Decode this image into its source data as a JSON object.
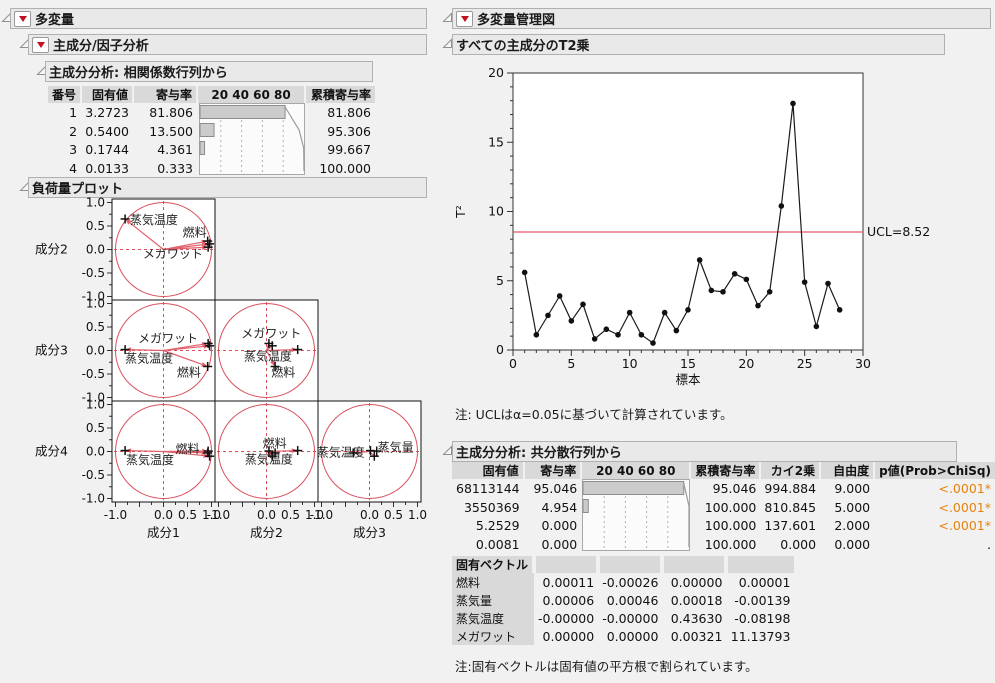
{
  "left": {
    "outline_multivariate": "多変量",
    "outline_principal": "主成分/因子分析",
    "pca_corr": {
      "title": "主成分分析: 相関係数行列から",
      "columns": [
        "番号",
        "固有値",
        "寄与率",
        "20 40 60 80",
        "累積寄与率"
      ],
      "rows": [
        {
          "num": "1",
          "eigenvalue": "3.2723",
          "percent": "81.806",
          "cum_percent": "81.806",
          "bar": 81.806,
          "cum": 81.806
        },
        {
          "num": "2",
          "eigenvalue": "0.5400",
          "percent": "13.500",
          "cum_percent": "95.306",
          "bar": 13.5,
          "cum": 95.306
        },
        {
          "num": "3",
          "eigenvalue": "0.1744",
          "percent": "4.361",
          "cum_percent": "99.667",
          "bar": 4.361,
          "cum": 99.667
        },
        {
          "num": "4",
          "eigenvalue": "0.0133",
          "percent": "0.333",
          "cum_percent": "100.000",
          "bar": 0.333,
          "cum": 100
        }
      ]
    },
    "loading_title": "負荷量プロット"
  },
  "right": {
    "outline_control": "多変量管理図",
    "t2_title": "すべての主成分のT2乗",
    "t2_note": "注: UCLはα=0.05に基づいて計算されています。",
    "pca_cov": {
      "title": "主成分分析: 共分散行列から",
      "columns": [
        "固有値",
        "寄与率",
        "20 40 60 80",
        "累積寄与率",
        "カイ2乗",
        "自由度",
        "p値(Prob>ChiSq)"
      ],
      "rows": [
        {
          "eigenvalue": "68113144",
          "percent": "95.046",
          "cum_percent": "95.046",
          "chisq": "994.884",
          "df": "9.000",
          "p": "<.0001*",
          "bar": 95.046,
          "cum": 95.046
        },
        {
          "eigenvalue": "3550369",
          "percent": "4.954",
          "cum_percent": "100.000",
          "chisq": "810.845",
          "df": "5.000",
          "p": "<.0001*",
          "bar": 4.954,
          "cum": 100
        },
        {
          "eigenvalue": "5.2529",
          "percent": "0.000",
          "cum_percent": "100.000",
          "chisq": "137.601",
          "df": "2.000",
          "p": "<.0001*",
          "bar": 0,
          "cum": 100
        },
        {
          "eigenvalue": "0.0081",
          "percent": "0.000",
          "cum_percent": "100.000",
          "chisq": "0.000",
          "df": "0.000",
          "p": ".",
          "bar": 0,
          "cum": 100
        }
      ]
    },
    "eigenvectors": {
      "title": "固有ベクトル",
      "rows": [
        {
          "name": "燃料",
          "values": [
            "0.00011",
            "-0.00026",
            "0.00000",
            "0.00001"
          ]
        },
        {
          "name": "蒸気量",
          "values": [
            "0.00006",
            "0.00046",
            "0.00018",
            "-0.00139"
          ]
        },
        {
          "name": "蒸気温度",
          "values": [
            "-0.00000",
            "-0.00000",
            "0.43630",
            "-0.08198"
          ]
        },
        {
          "name": "メガワット",
          "values": [
            "0.00000",
            "0.00000",
            "0.00321",
            "11.13793"
          ]
        }
      ]
    },
    "eigvec_note": "注:固有ベクトルは固有値の平方根で割られています。"
  },
  "colors": {
    "jmp_red": "#d94f5c",
    "arrow_red": "#e2606c",
    "ucl_red": "#e25765",
    "orange": "#e8820c",
    "bar_fill": "#cbcbcb"
  },
  "chart_data": [
    {
      "id": "t2_chart",
      "type": "line",
      "title": "すべての主成分のT2乗",
      "xlabel": "標本",
      "ylabel": "T²",
      "xlim": [
        0,
        30
      ],
      "ylim": [
        0,
        20
      ],
      "xticks": [
        0,
        5,
        10,
        15,
        20,
        25,
        30
      ],
      "yticks": [
        0,
        5,
        10,
        15,
        20
      ],
      "ucl": 8.52,
      "ucl_label": "UCL=8.52",
      "values": [
        5.6,
        1.1,
        2.5,
        3.9,
        2.1,
        3.3,
        0.8,
        1.5,
        1.1,
        2.7,
        1.1,
        0.5,
        2.7,
        1.4,
        2.9,
        6.5,
        4.3,
        4.2,
        5.5,
        5.1,
        3.2,
        4.2,
        10.4,
        17.8,
        4.9,
        1.7,
        4.8,
        2.9
      ]
    },
    {
      "id": "loading_matrix",
      "type": "scatter",
      "title": "負荷量プロット",
      "row_labels": [
        "成分2",
        "成分3",
        "成分4"
      ],
      "col_labels": [
        "成分1",
        "成分2",
        "成分3"
      ],
      "tick_labels": [
        -1.0,
        0.0,
        0.5,
        1.0
      ],
      "variables": [
        {
          "name": "燃料",
          "pc": [
            0.92,
            0.18,
            -0.34,
            -0.03
          ]
        },
        {
          "name": "蒸気量",
          "pc": [
            0.96,
            0.12,
            0.1,
            -0.1
          ]
        },
        {
          "name": "蒸気温度",
          "pc": [
            -0.8,
            0.65,
            0.02,
            0.02
          ]
        },
        {
          "name": "メガワット",
          "pc": [
            0.93,
            0.05,
            0.15,
            0.01
          ]
        }
      ],
      "cells": [
        {
          "row": 0,
          "col": 0,
          "xpc": 1,
          "ypc": 2,
          "labels": [
            {
              "t": "蒸気温度",
              "x": -0.7,
              "y": 0.63,
              "a": "start"
            },
            {
              "t": "燃料",
              "x": 0.9,
              "y": 0.36,
              "a": "end"
            },
            {
              "t": "メガワット",
              "x": 0.82,
              "y": -0.1,
              "a": "end"
            }
          ]
        },
        {
          "row": 1,
          "col": 0,
          "xpc": 1,
          "ypc": 3,
          "labels": [
            {
              "t": "メガワット",
              "x": 0.72,
              "y": 0.26,
              "a": "end"
            },
            {
              "t": "蒸気温度",
              "x": -0.8,
              "y": -0.17,
              "a": "start"
            },
            {
              "t": "燃料",
              "x": 0.78,
              "y": -0.47,
              "a": "end"
            }
          ]
        },
        {
          "row": 1,
          "col": 1,
          "xpc": 2,
          "ypc": 3,
          "labels": [
            {
              "t": "メガワット",
              "x": 0.1,
              "y": 0.36,
              "a": "middle"
            },
            {
              "t": "蒸気温度",
              "x": 0.03,
              "y": -0.13,
              "a": "middle"
            },
            {
              "t": "燃料",
              "x": 0.35,
              "y": -0.47,
              "a": "middle"
            }
          ]
        },
        {
          "row": 2,
          "col": 0,
          "xpc": 1,
          "ypc": 4,
          "labels": [
            {
              "t": "蒸気温度",
              "x": -0.78,
              "y": -0.18,
              "a": "start"
            },
            {
              "t": "燃料",
              "x": 0.75,
              "y": 0.05,
              "a": "end"
            }
          ]
        },
        {
          "row": 2,
          "col": 1,
          "xpc": 2,
          "ypc": 4,
          "labels": [
            {
              "t": "燃料",
              "x": 0.17,
              "y": 0.17,
              "a": "middle"
            },
            {
              "t": "蒸気温度",
              "x": 0.05,
              "y": -0.17,
              "a": "middle"
            }
          ]
        },
        {
          "row": 2,
          "col": 2,
          "xpc": 3,
          "ypc": 4,
          "labels": [
            {
              "t": "蒸気温度",
              "x": -0.1,
              "y": -0.02,
              "a": "end"
            },
            {
              "t": "蒸気量",
              "x": 0.17,
              "y": 0.08,
              "a": "start"
            }
          ]
        }
      ]
    }
  ]
}
